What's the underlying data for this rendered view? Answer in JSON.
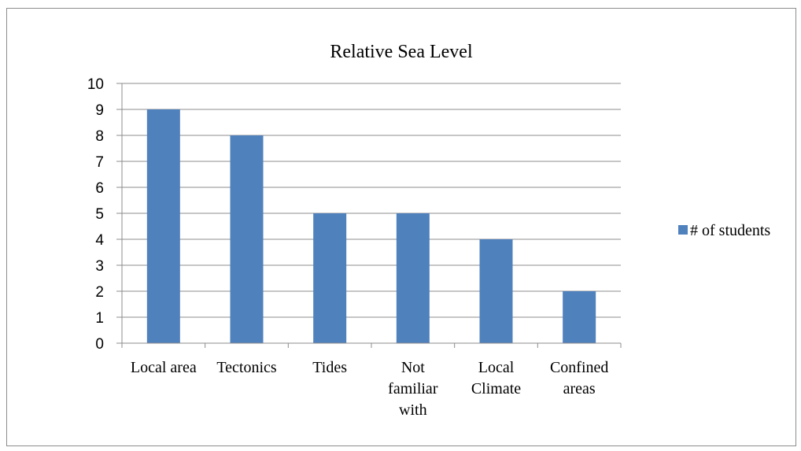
{
  "chart_data": {
    "type": "bar",
    "title": "Relative Sea Level",
    "categories": [
      "Local area",
      "Tectonics",
      "Tides",
      "Not familiar with",
      "Local Climate",
      "Confined areas"
    ],
    "category_lines": [
      [
        "Local area"
      ],
      [
        "Tectonics"
      ],
      [
        "Tides"
      ],
      [
        "Not",
        "familiar",
        "with"
      ],
      [
        "Local",
        "Climate"
      ],
      [
        "Confined",
        "areas"
      ]
    ],
    "series": [
      {
        "name": "# of students",
        "values": [
          9,
          8,
          5,
          5,
          4,
          2
        ]
      }
    ],
    "ylim": [
      0,
      10
    ],
    "yticks": [
      0,
      1,
      2,
      3,
      4,
      5,
      6,
      7,
      8,
      9,
      10
    ],
    "grid": true,
    "legend": "right",
    "colors": {
      "bar": "#4f81bd",
      "grid": "#8c8c8c",
      "axis": "#8c8c8c"
    }
  }
}
